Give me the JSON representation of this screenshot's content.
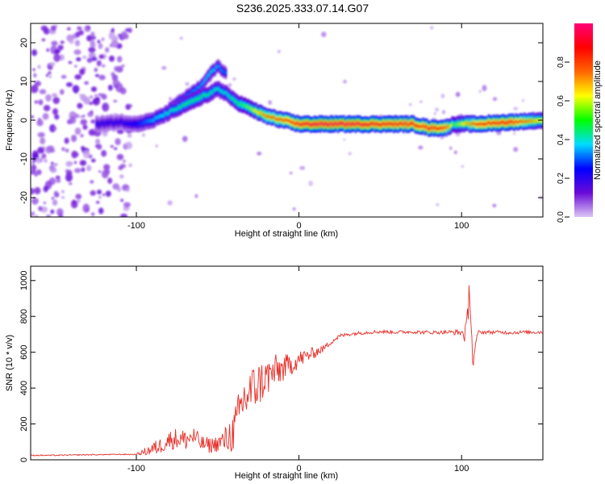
{
  "title": "S236.2025.333.07.14.G07",
  "chart_data": [
    {
      "type": "heatmap",
      "xlabel": "Height of straight line (km)",
      "ylabel": "Frequency (Hz)",
      "xlim": [
        -165,
        150
      ],
      "ylim": [
        -25,
        25
      ],
      "xticks": [
        -100,
        0,
        100
      ],
      "xtick_labels": [
        "-100",
        "0",
        "100"
      ],
      "yticks": [
        -20,
        -10,
        0,
        10,
        20
      ],
      "ytick_labels": [
        "-20",
        "-10",
        "0",
        "10",
        "20"
      ],
      "colorbar": {
        "label": "Normalized spectral amplitude",
        "range": [
          0,
          1
        ],
        "ticks": [
          0.0,
          0.2,
          0.4,
          0.6,
          0.8
        ],
        "tick_labels": [
          "0.0",
          "0.2",
          "0.4",
          "0.6",
          "0.8"
        ],
        "colors": [
          "#dcc6f5",
          "#6a0ad8",
          "#0000ff",
          "#00dcff",
          "#00ff00",
          "#ffff00",
          "#ff6600",
          "#ff0000",
          "#ff0077"
        ]
      },
      "ridge": {
        "x": [
          -125,
          -110,
          -100,
          -90,
          -80,
          -70,
          -60,
          -50,
          -45,
          -40,
          -30,
          -20,
          -10,
          0,
          10,
          30,
          50,
          70,
          75,
          80,
          90,
          95,
          100,
          110,
          130,
          150
        ],
        "y": [
          -1,
          -0.5,
          -1,
          0,
          2,
          4,
          6,
          8,
          7,
          5,
          3,
          1,
          0,
          -1,
          -1,
          -1,
          -1,
          -1,
          -1.5,
          -2,
          -2,
          -1,
          -1,
          -1,
          -0.5,
          0
        ],
        "amplitude": [
          0.2,
          0.2,
          0.25,
          0.35,
          0.4,
          0.45,
          0.45,
          0.4,
          0.4,
          0.45,
          0.55,
          0.75,
          0.8,
          0.9,
          0.95,
          0.95,
          0.9,
          0.9,
          0.85,
          0.9,
          0.85,
          0.5,
          0.6,
          0.85,
          0.9,
          0.6
        ]
      },
      "branch": {
        "x": [
          -80,
          -70,
          -60,
          -55,
          -50,
          -45
        ],
        "y": [
          3,
          6,
          9,
          12,
          14,
          12
        ],
        "amplitude": [
          0.3,
          0.3,
          0.35,
          0.4,
          0.35,
          0.3
        ]
      }
    },
    {
      "type": "line",
      "xlabel": "Height of straight line (km)",
      "ylabel": "SNR (10 * v/v)",
      "xlim": [
        -165,
        150
      ],
      "ylim": [
        0,
        1080
      ],
      "xticks": [
        -100,
        0,
        100
      ],
      "xtick_labels": [
        "-100",
        "0",
        "100"
      ],
      "yticks": [
        0,
        200,
        400,
        600,
        800,
        1000
      ],
      "ytick_labels": [
        "0",
        "200",
        "400",
        "600",
        "800",
        "1000"
      ],
      "color": "#e8302a",
      "series": [
        {
          "name": "SNR",
          "x": [
            -165,
            -150,
            -130,
            -110,
            -100,
            -95,
            -90,
            -85,
            -80,
            -75,
            -70,
            -65,
            -60,
            -55,
            -50,
            -45,
            -40,
            -37,
            -35,
            -30,
            -25,
            -20,
            -15,
            -10,
            -5,
            0,
            5,
            10,
            15,
            20,
            25,
            30,
            40,
            50,
            60,
            70,
            80,
            90,
            100,
            103,
            105,
            107,
            110,
            120,
            130,
            140,
            150
          ],
          "y": [
            25,
            25,
            28,
            30,
            30,
            45,
            60,
            80,
            110,
            120,
            110,
            130,
            90,
            80,
            90,
            110,
            160,
            240,
            320,
            380,
            420,
            460,
            490,
            510,
            530,
            560,
            580,
            600,
            620,
            660,
            690,
            700,
            710,
            715,
            712,
            714,
            710,
            712,
            710,
            700,
            980,
            520,
            712,
            712,
            710,
            712,
            712
          ],
          "noise": [
            3,
            3,
            3,
            3,
            3,
            20,
            40,
            45,
            55,
            60,
            60,
            60,
            45,
            45,
            45,
            80,
            120,
            140,
            150,
            140,
            130,
            110,
            100,
            80,
            60,
            50,
            40,
            30,
            20,
            15,
            12,
            10,
            10,
            10,
            10,
            10,
            10,
            10,
            18,
            70,
            90,
            70,
            10,
            10,
            10,
            10,
            10
          ]
        }
      ]
    }
  ]
}
